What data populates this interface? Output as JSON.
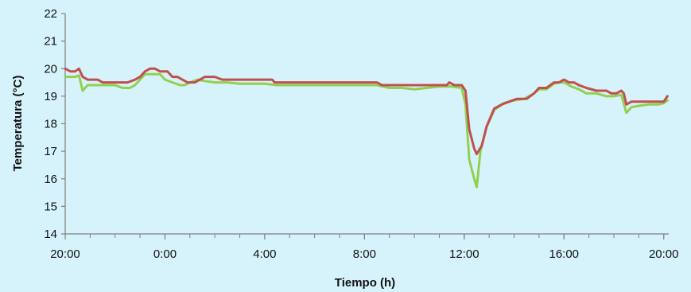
{
  "chart_data": {
    "type": "line",
    "xlabel": "Tiempo (h)",
    "ylabel": "Temperatura (°C)",
    "ylim": [
      14,
      22
    ],
    "yticks": [
      14,
      15,
      16,
      17,
      18,
      19,
      20,
      21,
      22
    ],
    "xlim": [
      20,
      44.2
    ],
    "xticks": [
      {
        "value": 20,
        "label": "20:00"
      },
      {
        "value": 24,
        "label": "0:00"
      },
      {
        "value": 28,
        "label": "4:00"
      },
      {
        "value": 32,
        "label": "8:00"
      },
      {
        "value": 36,
        "label": "12:00"
      },
      {
        "value": 40,
        "label": "16:00"
      },
      {
        "value": 44,
        "label": "20:00"
      }
    ],
    "grid": false,
    "legend": "none",
    "series": [
      {
        "color": "#92d050",
        "points": [
          [
            20.0,
            19.7
          ],
          [
            20.4,
            19.7
          ],
          [
            20.55,
            19.75
          ],
          [
            20.7,
            19.2
          ],
          [
            20.9,
            19.4
          ],
          [
            21.1,
            19.4
          ],
          [
            21.5,
            19.4
          ],
          [
            22.0,
            19.4
          ],
          [
            22.3,
            19.3
          ],
          [
            22.6,
            19.3
          ],
          [
            22.8,
            19.4
          ],
          [
            23.0,
            19.6
          ],
          [
            23.2,
            19.8
          ],
          [
            23.5,
            19.8
          ],
          [
            23.8,
            19.8
          ],
          [
            24.0,
            19.6
          ],
          [
            24.3,
            19.5
          ],
          [
            24.6,
            19.4
          ],
          [
            24.8,
            19.4
          ],
          [
            25.0,
            19.5
          ],
          [
            25.3,
            19.6
          ],
          [
            25.6,
            19.55
          ],
          [
            26.0,
            19.5
          ],
          [
            26.5,
            19.5
          ],
          [
            27.0,
            19.45
          ],
          [
            28.0,
            19.45
          ],
          [
            28.5,
            19.4
          ],
          [
            29.0,
            19.4
          ],
          [
            30.0,
            19.4
          ],
          [
            31.0,
            19.4
          ],
          [
            32.0,
            19.4
          ],
          [
            32.5,
            19.4
          ],
          [
            33.0,
            19.3
          ],
          [
            33.5,
            19.3
          ],
          [
            34.0,
            19.25
          ],
          [
            34.5,
            19.3
          ],
          [
            35.0,
            19.35
          ],
          [
            35.5,
            19.35
          ],
          [
            35.9,
            19.3
          ],
          [
            36.05,
            18.7
          ],
          [
            36.2,
            16.7
          ],
          [
            36.4,
            16.0
          ],
          [
            36.5,
            15.7
          ],
          [
            36.65,
            17.0
          ],
          [
            36.9,
            17.9
          ],
          [
            37.2,
            18.5
          ],
          [
            37.6,
            18.75
          ],
          [
            38.0,
            18.85
          ],
          [
            38.4,
            18.9
          ],
          [
            38.8,
            19.1
          ],
          [
            39.0,
            19.25
          ],
          [
            39.3,
            19.25
          ],
          [
            39.6,
            19.45
          ],
          [
            39.8,
            19.5
          ],
          [
            40.0,
            19.5
          ],
          [
            40.3,
            19.35
          ],
          [
            40.6,
            19.25
          ],
          [
            40.9,
            19.1
          ],
          [
            41.3,
            19.1
          ],
          [
            41.7,
            19.0
          ],
          [
            42.0,
            19.0
          ],
          [
            42.3,
            19.05
          ],
          [
            42.5,
            18.4
          ],
          [
            42.7,
            18.6
          ],
          [
            43.0,
            18.65
          ],
          [
            43.4,
            18.7
          ],
          [
            43.8,
            18.7
          ],
          [
            44.0,
            18.75
          ],
          [
            44.15,
            18.85
          ]
        ]
      },
      {
        "color": "#c0504d",
        "points": [
          [
            20.0,
            20.0
          ],
          [
            20.2,
            19.9
          ],
          [
            20.4,
            19.9
          ],
          [
            20.55,
            20.0
          ],
          [
            20.7,
            19.7
          ],
          [
            20.9,
            19.6
          ],
          [
            21.3,
            19.6
          ],
          [
            21.5,
            19.5
          ],
          [
            22.0,
            19.5
          ],
          [
            22.5,
            19.5
          ],
          [
            22.8,
            19.6
          ],
          [
            23.0,
            19.7
          ],
          [
            23.2,
            19.9
          ],
          [
            23.4,
            20.0
          ],
          [
            23.6,
            20.0
          ],
          [
            23.8,
            19.9
          ],
          [
            24.1,
            19.9
          ],
          [
            24.3,
            19.7
          ],
          [
            24.5,
            19.7
          ],
          [
            24.7,
            19.6
          ],
          [
            24.9,
            19.5
          ],
          [
            25.2,
            19.5
          ],
          [
            25.4,
            19.6
          ],
          [
            25.6,
            19.7
          ],
          [
            26.0,
            19.7
          ],
          [
            26.3,
            19.6
          ],
          [
            27.0,
            19.6
          ],
          [
            27.5,
            19.6
          ],
          [
            28.0,
            19.6
          ],
          [
            28.3,
            19.6
          ],
          [
            28.4,
            19.5
          ],
          [
            29.0,
            19.5
          ],
          [
            30.0,
            19.5
          ],
          [
            31.0,
            19.5
          ],
          [
            32.0,
            19.5
          ],
          [
            32.5,
            19.5
          ],
          [
            32.7,
            19.4
          ],
          [
            33.5,
            19.4
          ],
          [
            34.0,
            19.4
          ],
          [
            34.5,
            19.4
          ],
          [
            35.0,
            19.4
          ],
          [
            35.3,
            19.4
          ],
          [
            35.4,
            19.5
          ],
          [
            35.6,
            19.4
          ],
          [
            35.9,
            19.4
          ],
          [
            36.05,
            19.2
          ],
          [
            36.2,
            17.8
          ],
          [
            36.4,
            17.1
          ],
          [
            36.5,
            16.9
          ],
          [
            36.7,
            17.2
          ],
          [
            36.9,
            17.9
          ],
          [
            37.2,
            18.55
          ],
          [
            37.5,
            18.7
          ],
          [
            37.8,
            18.8
          ],
          [
            38.1,
            18.9
          ],
          [
            38.5,
            18.9
          ],
          [
            38.8,
            19.1
          ],
          [
            39.0,
            19.3
          ],
          [
            39.3,
            19.3
          ],
          [
            39.6,
            19.5
          ],
          [
            39.8,
            19.5
          ],
          [
            40.0,
            19.6
          ],
          [
            40.2,
            19.5
          ],
          [
            40.4,
            19.5
          ],
          [
            40.6,
            19.4
          ],
          [
            40.9,
            19.3
          ],
          [
            41.3,
            19.2
          ],
          [
            41.7,
            19.2
          ],
          [
            41.9,
            19.1
          ],
          [
            42.1,
            19.1
          ],
          [
            42.3,
            19.2
          ],
          [
            42.4,
            19.1
          ],
          [
            42.5,
            18.7
          ],
          [
            42.7,
            18.8
          ],
          [
            43.0,
            18.8
          ],
          [
            43.4,
            18.8
          ],
          [
            43.8,
            18.8
          ],
          [
            44.0,
            18.8
          ],
          [
            44.15,
            19.0
          ]
        ]
      }
    ]
  }
}
